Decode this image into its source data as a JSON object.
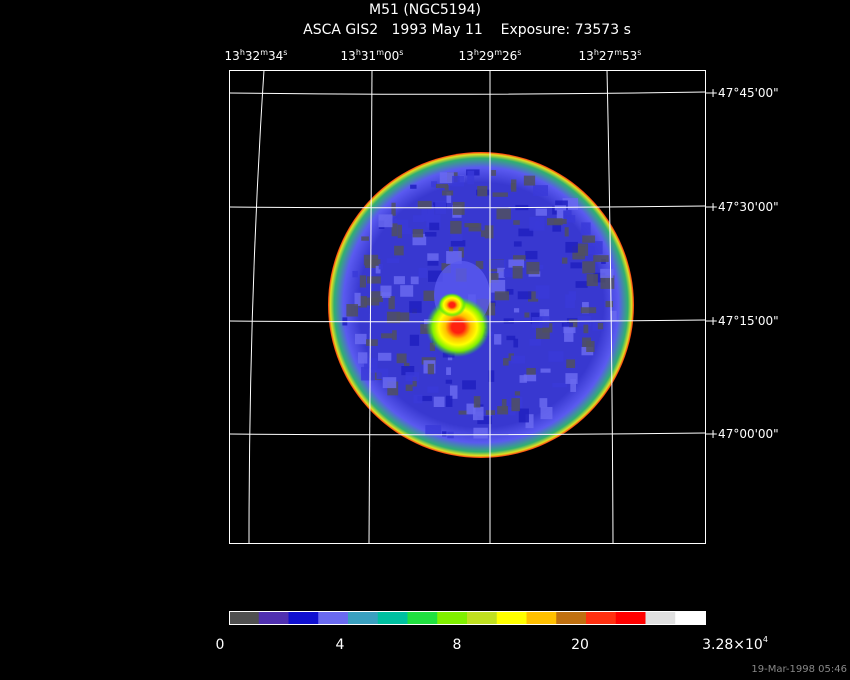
{
  "header": {
    "title": "M51 (NGC5194)",
    "subtitle": "ASCA GIS2   1993 May 11    Exposure: 73573 s"
  },
  "ra_labels": [
    [
      "13",
      "h",
      "32",
      "m",
      "34",
      "s"
    ],
    [
      "13",
      "h",
      "31",
      "m",
      "00",
      "s"
    ],
    [
      "13",
      "h",
      "29",
      "m",
      "26",
      "s"
    ],
    [
      "13",
      "h",
      "27",
      "m",
      "53",
      "s"
    ]
  ],
  "dec_labels": [
    "+47°45'00\"",
    "+47°30'00\"",
    "+47°15'00\"",
    "+47°00'00\""
  ],
  "colorbar": {
    "labels": [
      "0",
      "4",
      "8",
      "20"
    ],
    "max_label": {
      "mantissa": "3.28×10",
      "exponent": "4"
    }
  },
  "timestamp": "19-Mar-1998 05:46"
}
